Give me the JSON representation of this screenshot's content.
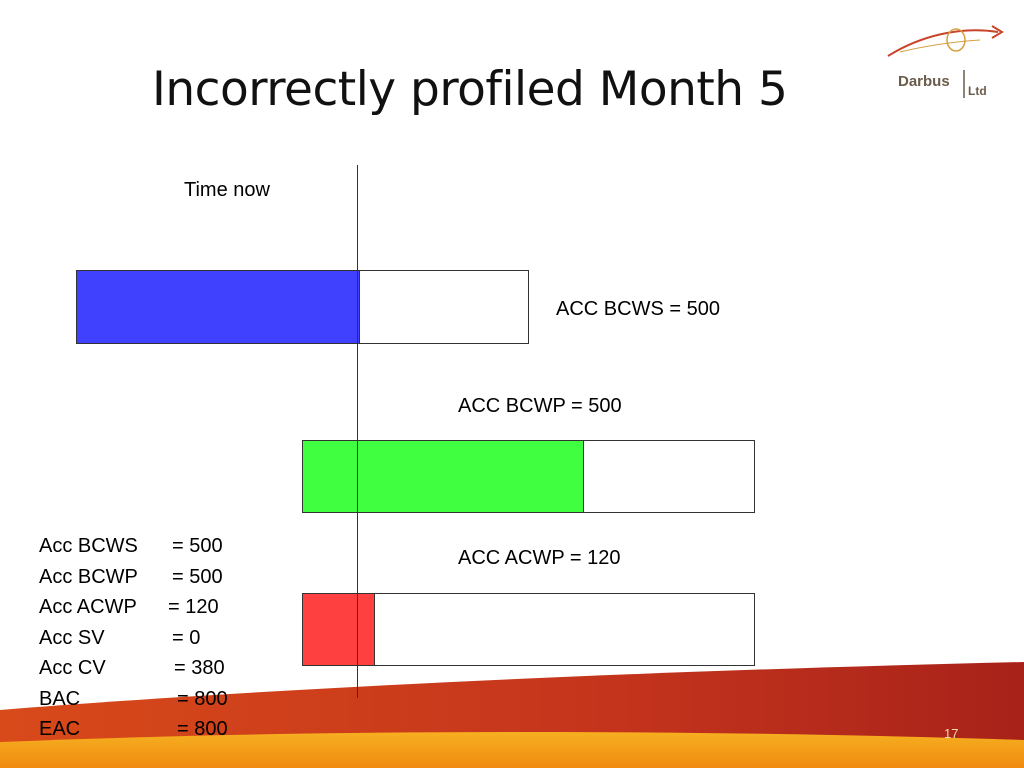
{
  "slide": {
    "title": "Incorrectly profiled Month 5",
    "slide_number": "17"
  },
  "logo": {
    "name": "Darbus",
    "suffix": "Ltd",
    "icon": "swoosh-globe-logo",
    "colors": {
      "text": "#6b5b4b",
      "swoosh": "#c8442a",
      "globe": "#d4a040"
    }
  },
  "diagram": {
    "time_now_label": "Time now",
    "bars": [
      {
        "label": "ACC BCWS = 500",
        "fill_color": "#4040ff",
        "fill_fraction": 0.627
      },
      {
        "label": "ACC BCWP = 500",
        "fill_color": "#40ff40",
        "fill_fraction": 0.624
      },
      {
        "label": "ACC ACWP = 120",
        "fill_color": "#ff4040",
        "fill_fraction": 0.16
      }
    ]
  },
  "stats": [
    {
      "key": "Acc BCWS",
      "value": "= 500"
    },
    {
      "key": "Acc BCWP",
      "value": "= 500"
    },
    {
      "key": "Acc ACWP",
      "value": "= 120"
    },
    {
      "key": "Acc SV",
      "value": "= 0"
    },
    {
      "key": "Acc CV",
      "value": "= 380"
    },
    {
      "key": "BAC",
      "value": "= 800"
    },
    {
      "key": "EAC",
      "value": "= 800"
    }
  ],
  "theme": {
    "swoosh_dark": "#b02a18",
    "swoosh_light": "#f0a020"
  }
}
